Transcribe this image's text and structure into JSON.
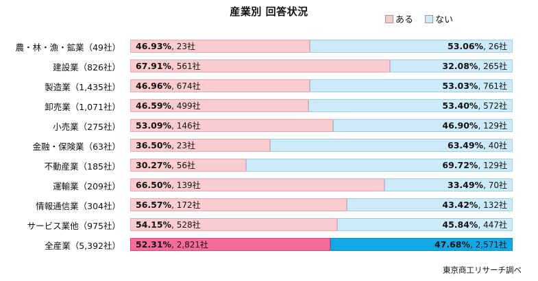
{
  "chart_data": {
    "type": "bar",
    "title": "産業別 回答状況",
    "stacked": "100%",
    "orientation": "horizontal",
    "legend_position": "top-right",
    "categories": [
      "農・林・漁・鉱業（49社）",
      "建設業（826社）",
      "製造業（1,435社）",
      "卸売業（1,071社）",
      "小売業（275社）",
      "金融・保険業（63社）",
      "不動産業（185社）",
      "運輸業（209社）",
      "情報通信業（304社）",
      "サービス業他（975社）",
      "全産業（5,392社）"
    ],
    "series": [
      {
        "name": "ある",
        "color": "#f9cdd0",
        "highlight_color": "#f76b9b",
        "values": [
          46.93,
          67.91,
          46.96,
          46.59,
          53.09,
          36.5,
          30.27,
          66.5,
          56.57,
          54.15,
          52.31
        ],
        "pct_labels": [
          "46.93%",
          "67.91%",
          "46.96%",
          "46.59%",
          "53.09%",
          "36.50%",
          "30.27%",
          "66.50%",
          "56.57%",
          "54.15%",
          "52.31%"
        ],
        "count_labels": [
          "23社",
          "561社",
          "674社",
          "499社",
          "146社",
          "23社",
          "56社",
          "139社",
          "172社",
          "528社",
          "2,821社"
        ]
      },
      {
        "name": "ない",
        "color": "#cdeaf8",
        "highlight_color": "#10a9e6",
        "values": [
          53.06,
          32.08,
          53.03,
          53.4,
          46.9,
          63.49,
          69.72,
          33.49,
          43.42,
          45.84,
          47.68
        ],
        "pct_labels": [
          "53.06%",
          "32.08%",
          "53.03%",
          "53.40%",
          "46.90%",
          "63.49%",
          "69.72%",
          "33.49%",
          "43.42%",
          "45.84%",
          "47.68%"
        ],
        "count_labels": [
          "26社",
          "265社",
          "761社",
          "572社",
          "129社",
          "40社",
          "129社",
          "70社",
          "132社",
          "447社",
          "2,571社"
        ]
      }
    ],
    "xlim": [
      0,
      100
    ],
    "source": "東京商工リサーチ調べ"
  }
}
